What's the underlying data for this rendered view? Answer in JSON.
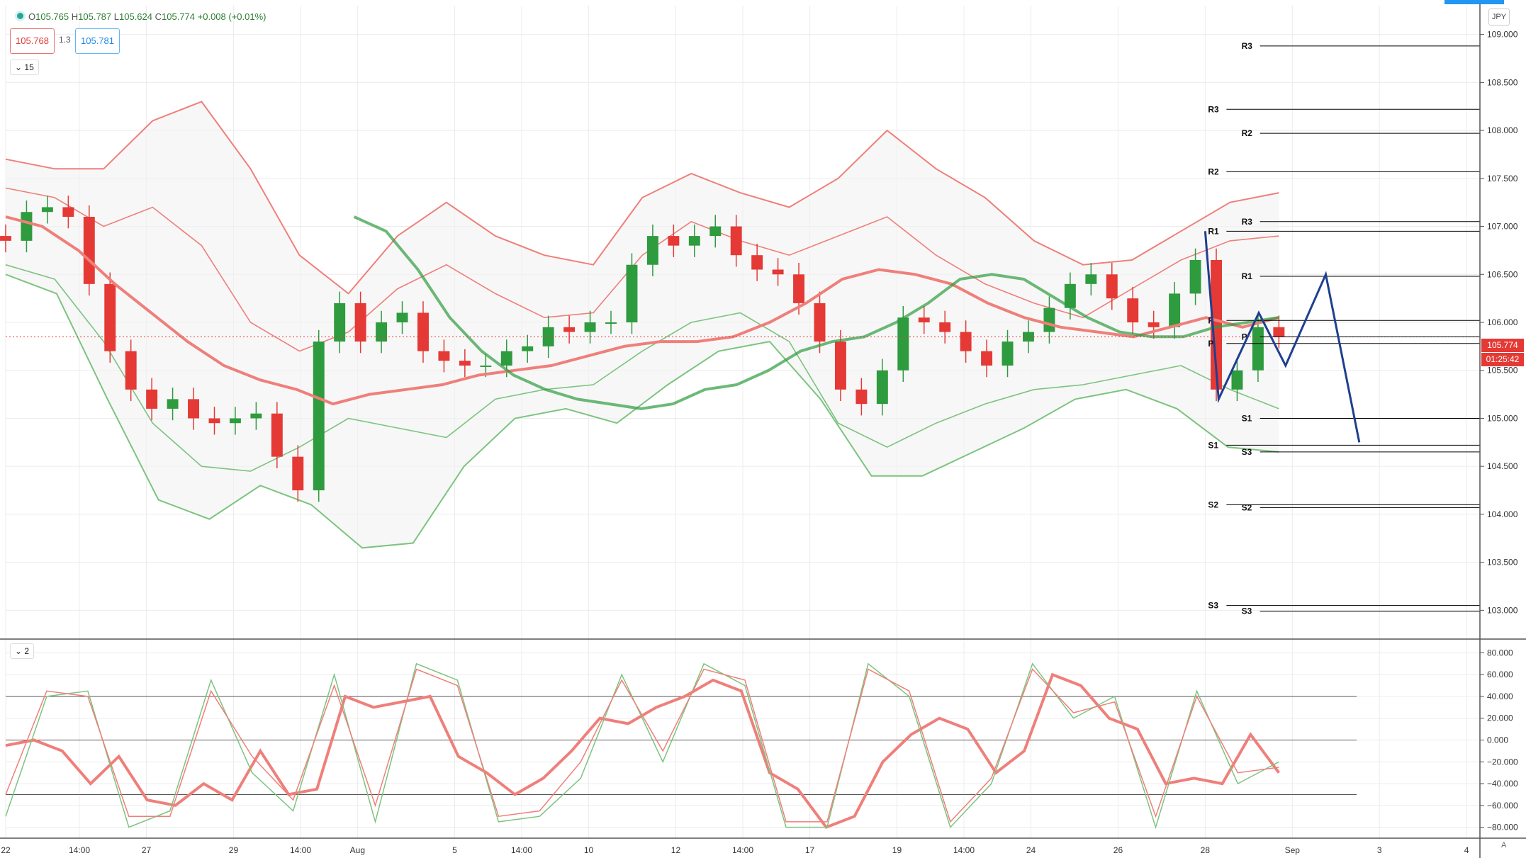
{
  "header": {
    "open_label": "O",
    "open": "105.765",
    "high_label": "H",
    "high": "105.787",
    "low_label": "L",
    "low": "105.624",
    "close_label": "C",
    "close": "105.774",
    "change": "+0.008 (+0.01%)",
    "sell_price": "105.768",
    "spread": "1.3",
    "buy_price": "105.781",
    "interval": "15",
    "osc_interval": "2",
    "currency": "JPY"
  },
  "price_label": {
    "value": "105.774",
    "countdown": "01:25:42"
  },
  "axis_corner": "A",
  "colors": {
    "bull": "#2e9b3e",
    "bear": "#e53935",
    "env_red": "#ef7f7a",
    "env_green": "#7cc47f",
    "pivot_line": "#000000",
    "drawing": "#1f3f8f",
    "grid": "#ececec",
    "price_line": "#e53935"
  },
  "chart_data": {
    "type": "line",
    "panes": [
      "price",
      "oscillator"
    ],
    "y_ticks": [
      "109.000",
      "108.500",
      "108.000",
      "107.500",
      "107.000",
      "106.500",
      "106.000",
      "105.500",
      "105.000",
      "104.500",
      "104.000",
      "103.500",
      "103.000"
    ],
    "y_range": [
      102.7,
      109.3
    ],
    "x_ticks": [
      {
        "label": "22",
        "x": 0
      },
      {
        "label": "14:00",
        "x": 11
      },
      {
        "label": "27",
        "x": 21
      },
      {
        "label": "29",
        "x": 34
      },
      {
        "label": "14:00",
        "x": 44
      },
      {
        "label": "Aug",
        "x": 52.5
      },
      {
        "label": "5",
        "x": 67
      },
      {
        "label": "14:00",
        "x": 77
      },
      {
        "label": "10",
        "x": 87
      },
      {
        "label": "12",
        "x": 100
      },
      {
        "label": "14:00",
        "x": 110
      },
      {
        "label": "17",
        "x": 120
      },
      {
        "label": "19",
        "x": 133
      },
      {
        "label": "14:00",
        "x": 143
      },
      {
        "label": "24",
        "x": 153
      },
      {
        "label": "26",
        "x": 166
      },
      {
        "label": "28",
        "x": 179
      },
      {
        "label": "Sep",
        "x": 192
      },
      {
        "label": "3",
        "x": 205
      },
      {
        "label": "4",
        "x": 218
      }
    ],
    "x_range": [
      0,
      220
    ],
    "closes": [
      106.85,
      107.15,
      107.2,
      107.1,
      106.4,
      105.7,
      105.3,
      105.1,
      105.2,
      105.0,
      104.95,
      105.0,
      105.05,
      104.6,
      104.25,
      105.8,
      106.2,
      105.8,
      106.0,
      106.1,
      105.7,
      105.6,
      105.55,
      105.55,
      105.7,
      105.75,
      105.95,
      105.9,
      106.0,
      106.0,
      106.6,
      106.9,
      106.8,
      106.9,
      107.0,
      106.7,
      106.55,
      106.5,
      106.2,
      105.8,
      105.3,
      105.15,
      105.5,
      106.05,
      106.0,
      105.9,
      105.7,
      105.55,
      105.8,
      105.9,
      106.15,
      106.4,
      106.5,
      106.25,
      106.0,
      105.95,
      106.3,
      106.65,
      105.3,
      105.5,
      105.95,
      105.85
    ],
    "center_ema": [
      107.1,
      107.0,
      106.75,
      106.4,
      106.1,
      105.8,
      105.55,
      105.4,
      105.3,
      105.15,
      105.25,
      105.3,
      105.35,
      105.45,
      105.5,
      105.55,
      105.65,
      105.75,
      105.8,
      105.8,
      105.85,
      106.0,
      106.2,
      106.45,
      106.55,
      106.5,
      106.4,
      106.2,
      106.05,
      105.95,
      105.9,
      105.85,
      105.95,
      106.05,
      105.95,
      106.05
    ],
    "trend_ema": [
      107.1,
      106.95,
      106.55,
      106.05,
      105.7,
      105.45,
      105.3,
      105.2,
      105.15,
      105.1,
      105.15,
      105.3,
      105.35,
      105.5,
      105.7,
      105.8,
      105.85,
      106.0,
      106.2,
      106.45,
      106.5,
      106.45,
      106.25,
      106.05,
      105.9,
      105.85,
      105.85,
      105.95,
      106.0,
      106.05
    ],
    "series": [
      {
        "name": "envelope_outer_upper",
        "values": [
          107.7,
          107.6,
          107.6,
          108.1,
          108.3,
          107.6,
          106.7,
          106.3,
          106.9,
          107.25,
          106.9,
          106.7,
          106.6,
          107.3,
          107.55,
          107.35,
          107.2,
          107.5,
          108.0,
          107.6,
          107.3,
          106.85,
          106.6,
          106.65,
          106.95,
          107.25,
          107.35
        ]
      },
      {
        "name": "envelope_inner_upper",
        "values": [
          107.4,
          107.3,
          107.0,
          107.2,
          106.8,
          106.0,
          105.7,
          105.9,
          106.35,
          106.6,
          106.3,
          106.05,
          106.1,
          106.7,
          107.05,
          106.85,
          106.7,
          106.9,
          107.1,
          106.7,
          106.4,
          106.2,
          106.05,
          106.35,
          106.65,
          106.85,
          106.9
        ]
      },
      {
        "name": "envelope_inner_lower",
        "values": [
          106.6,
          106.45,
          105.8,
          104.95,
          104.5,
          104.45,
          104.7,
          105.0,
          104.9,
          104.8,
          105.2,
          105.3,
          105.35,
          105.7,
          106.0,
          106.1,
          105.8,
          104.95,
          104.7,
          104.95,
          105.15,
          105.3,
          105.35,
          105.45,
          105.55,
          105.3,
          105.1
        ]
      },
      {
        "name": "envelope_outer_lower",
        "values": [
          106.5,
          106.3,
          105.2,
          104.15,
          103.95,
          104.3,
          104.1,
          103.65,
          103.7,
          104.5,
          105.0,
          105.1,
          104.95,
          105.35,
          105.7,
          105.8,
          105.2,
          104.4,
          104.4,
          104.65,
          104.9,
          105.2,
          105.3,
          105.1,
          104.7,
          104.65
        ]
      },
      {
        "name": "osc_main",
        "values": [
          -5,
          0,
          -10,
          -40,
          -15,
          -55,
          -60,
          -40,
          -55,
          -10,
          -50,
          -45,
          40,
          30,
          35,
          40,
          -15,
          -30,
          -50,
          -35,
          -10,
          20,
          15,
          30,
          40,
          55,
          45,
          -30,
          -45,
          -80,
          -70,
          -20,
          5,
          20,
          10,
          -30,
          -10,
          60,
          50,
          20,
          10,
          -40,
          -35,
          -40,
          5,
          -30
        ]
      },
      {
        "name": "osc_fast",
        "values": [
          -70,
          40,
          45,
          -80,
          -65,
          55,
          -30,
          -65,
          60,
          -75,
          70,
          55,
          -75,
          -70,
          -35,
          60,
          -20,
          70,
          50,
          -80,
          -80,
          70,
          40,
          -80,
          -40,
          70,
          20,
          40,
          -80,
          45,
          -40,
          -20
        ]
      },
      {
        "name": "osc_slow",
        "values": [
          -50,
          45,
          40,
          -70,
          -70,
          45,
          -15,
          -55,
          50,
          -60,
          65,
          50,
          -70,
          -65,
          -20,
          55,
          -10,
          65,
          55,
          -75,
          -75,
          65,
          45,
          -75,
          -35,
          65,
          25,
          35,
          -70,
          40,
          -30,
          -25
        ]
      }
    ],
    "osc_ticks": [
      "80.000",
      "60.000",
      "40.000",
      "20.000",
      "0.000",
      "−20.000",
      "−40.000",
      "−60.000",
      "−80.000"
    ],
    "osc_levels": [
      40,
      0,
      -50
    ],
    "pivot_levels": [
      {
        "label": "R3",
        "value": 108.88
      },
      {
        "label": "R3",
        "value": 108.22
      },
      {
        "label": "R2",
        "value": 107.97
      },
      {
        "label": "R2",
        "value": 107.57
      },
      {
        "label": "R3",
        "value": 107.05
      },
      {
        "label": "R1",
        "value": 106.95
      },
      {
        "label": "R1",
        "value": 106.48
      },
      {
        "label": "P",
        "value": 106.02
      },
      {
        "label": "P",
        "value": 105.85
      },
      {
        "label": "P",
        "value": 105.78
      },
      {
        "label": "S1",
        "value": 105.0
      },
      {
        "label": "S1",
        "value": 104.72
      },
      {
        "label": "S3",
        "value": 104.65
      },
      {
        "label": "S2",
        "value": 104.1
      },
      {
        "label": "S2",
        "value": 104.07
      },
      {
        "label": "S3",
        "value": 103.05
      },
      {
        "label": "S3",
        "value": 102.99
      }
    ]
  }
}
